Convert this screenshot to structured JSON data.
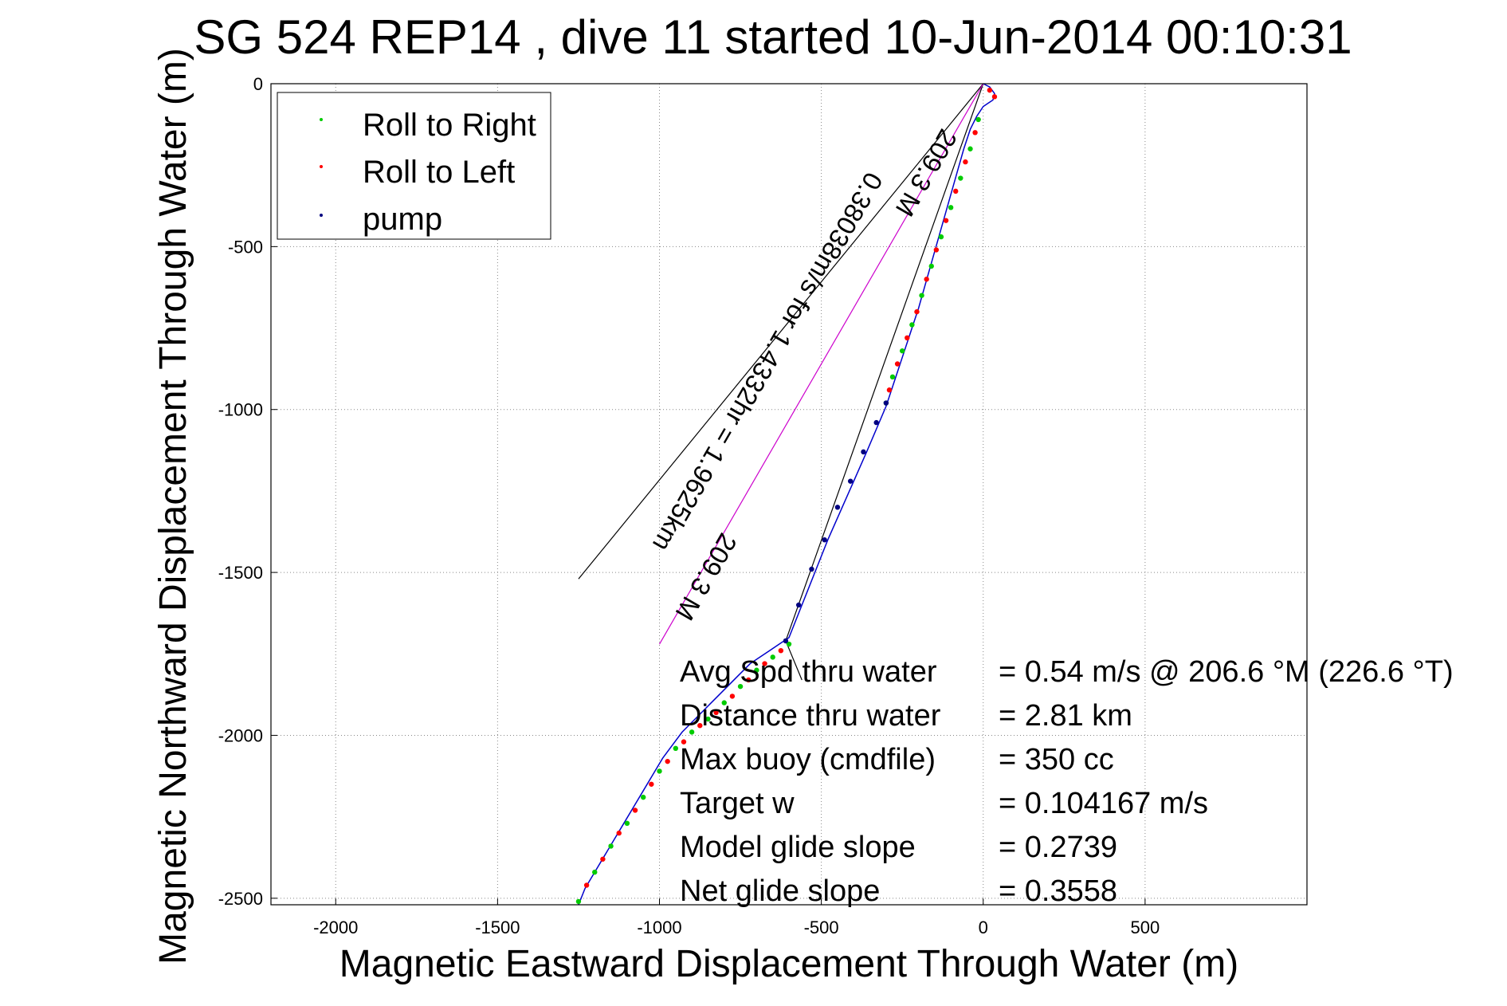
{
  "chart_data": {
    "type": "scatter",
    "title": "SG 524   REP14  , dive 11 started 10-Jun-2014 00:10:31",
    "xlabel": "Magnetic Eastward Displacement Through Water (m)",
    "ylabel": "Magnetic Northward Displacement Through Water (m)",
    "xlim": [
      -2200,
      1000
    ],
    "ylim": [
      -2520,
      0
    ],
    "x_ticks": [
      -2000,
      -1500,
      -1000,
      -500,
      0,
      500
    ],
    "y_ticks": [
      0,
      -500,
      -1000,
      -1500,
      -2000,
      -2500
    ],
    "grid": true,
    "legend_position": "top-left",
    "legend": [
      {
        "label": "Roll to Right",
        "color": "#00cc00"
      },
      {
        "label": "Roll to Left",
        "color": "#ff0000"
      },
      {
        "label": "pump",
        "color": "#000080"
      }
    ],
    "series": [
      {
        "name": "Roll to Right",
        "color": "#00cc00",
        "x": [
          -1250,
          -1200,
          -1150,
          -1100,
          -1050,
          -1000,
          -950,
          -900,
          -850,
          -800,
          -750,
          -700,
          -650,
          -600,
          -300,
          -280,
          -250,
          -220,
          -190,
          -160,
          -130,
          -100,
          -70,
          -40,
          -15
        ],
        "y": [
          -2510,
          -2420,
          -2340,
          -2270,
          -2190,
          -2110,
          -2040,
          -1990,
          -1950,
          -1900,
          -1850,
          -1800,
          -1760,
          -1720,
          -980,
          -900,
          -820,
          -740,
          -650,
          -560,
          -470,
          -380,
          -290,
          -200,
          -110
        ]
      },
      {
        "name": "Roll to Left",
        "color": "#ff0000",
        "x": [
          -1225,
          -1175,
          -1125,
          -1075,
          -1025,
          -975,
          -925,
          -875,
          -825,
          -775,
          -725,
          -675,
          -625,
          -290,
          -265,
          -235,
          -205,
          -175,
          -145,
          -115,
          -85,
          -55,
          -25,
          20,
          35
        ],
        "y": [
          -2460,
          -2380,
          -2300,
          -2230,
          -2150,
          -2080,
          -2020,
          -1970,
          -1930,
          -1880,
          -1830,
          -1780,
          -1740,
          -940,
          -860,
          -780,
          -700,
          -600,
          -510,
          -420,
          -330,
          -240,
          -150,
          -20,
          -40
        ]
      },
      {
        "name": "pump",
        "color": "#000080",
        "x": [
          -610,
          -570,
          -530,
          -490,
          -450,
          -410,
          -370,
          -330,
          -300
        ],
        "y": [
          -1710,
          -1600,
          -1490,
          -1400,
          -1300,
          -1220,
          -1130,
          -1040,
          -980
        ]
      }
    ],
    "track": {
      "color": "#0000cc",
      "x": [
        -1250,
        -1230,
        -1200,
        -1170,
        -1140,
        -1110,
        -1080,
        -1050,
        -1020,
        -990,
        -960,
        -930,
        -900,
        -870,
        -840,
        -810,
        -780,
        -750,
        -720,
        -690,
        -660,
        -630,
        -600,
        -560,
        -520,
        -480,
        -440,
        -400,
        -360,
        -330,
        -300,
        -280,
        -260,
        -240,
        -220,
        -200,
        -180,
        -160,
        -140,
        -120,
        -100,
        -80,
        -60,
        -40,
        -20,
        0,
        15,
        30,
        35,
        20,
        0
      ],
      "y": [
        -2520,
        -2470,
        -2420,
        -2370,
        -2320,
        -2270,
        -2220,
        -2170,
        -2120,
        -2070,
        -2030,
        -1990,
        -1960,
        -1930,
        -1900,
        -1870,
        -1840,
        -1810,
        -1780,
        -1760,
        -1740,
        -1720,
        -1700,
        -1600,
        -1500,
        -1400,
        -1310,
        -1220,
        -1130,
        -1060,
        -990,
        -930,
        -870,
        -810,
        -750,
        -690,
        -620,
        -550,
        -480,
        -410,
        -340,
        -270,
        -200,
        -140,
        -100,
        -70,
        -60,
        -50,
        -30,
        -10,
        0
      ]
    },
    "reference_lines": [
      {
        "color": "#000000",
        "x": [
          0,
          -1250
        ],
        "y": [
          0,
          -1520
        ]
      },
      {
        "color": "#000000",
        "x": [
          0,
          -610
        ],
        "y": [
          0,
          -1710
        ]
      },
      {
        "color": "#000000",
        "x": [
          -610,
          -560
        ],
        "y": [
          -1710,
          -1830
        ]
      },
      {
        "color": "#cc00cc",
        "x": [
          0,
          -1000
        ],
        "y": [
          0,
          -1720
        ]
      }
    ],
    "annotations": [
      {
        "text": "0.38038m/s for 1.4332hr = 1.9625km",
        "x": -690,
        "y": -840,
        "rotate": 120
      },
      {
        "text": "209.3 M",
        "x": -200,
        "y": -260,
        "rotate": 120
      },
      {
        "text": "209.3 M",
        "x": -880,
        "y": -1500,
        "rotate": 120
      }
    ],
    "stats": [
      {
        "label": "Avg Spd thru water",
        "value": "=  0.54 m/s @ 206.6 °M (226.6 °T)"
      },
      {
        "label": "Distance thru water",
        "value": "=  2.81 km"
      },
      {
        "label": "Max buoy (cmdfile)",
        "value": "= 350 cc"
      },
      {
        "label": "Target w",
        "value": "= 0.104167 m/s"
      },
      {
        "label": "Model glide slope",
        "value": "= 0.2739"
      },
      {
        "label": "Net glide slope",
        "value": "= 0.3558"
      }
    ]
  }
}
